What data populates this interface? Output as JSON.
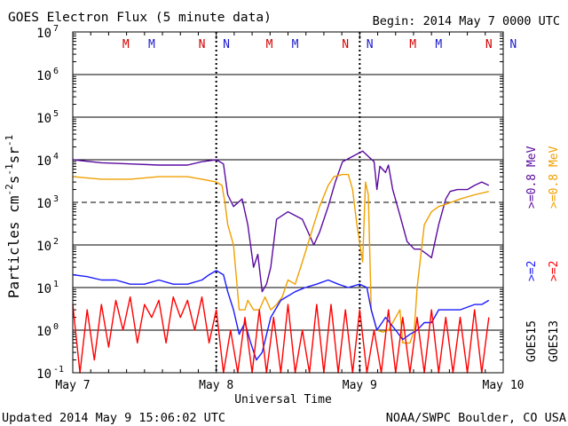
{
  "header": {
    "title": "GOES Electron Flux (5 minute data)",
    "begin": "Begin: 2014 May 7 0000 UTC"
  },
  "footer": {
    "updated": "Updated 2014 May  9 15:06:02 UTC",
    "source": "NOAA/SWPC Boulder, CO USA"
  },
  "axes": {
    "xlabel": "Universal Time",
    "ylabel": "Particles cm-2s-1sr-1",
    "x_ticks": [
      "May 7",
      "May 8",
      "May 9",
      "May 10"
    ],
    "y_ticks": [
      {
        "base": "10",
        "exp": "7"
      },
      {
        "base": "10",
        "exp": "6"
      },
      {
        "base": "10",
        "exp": "5"
      },
      {
        "base": "10",
        "exp": "4"
      },
      {
        "base": "10",
        "exp": "3"
      },
      {
        "base": "10",
        "exp": "2"
      },
      {
        "base": "10",
        "exp": "1"
      },
      {
        "base": "10",
        "exp": "0"
      },
      {
        "base": "10",
        "exp": "-1"
      }
    ]
  },
  "right_legend": {
    "purple": ">=0.8  MeV",
    "orange": ">=0.8  MeV",
    "blue": ">=2",
    "red": ">=2",
    "sat1": "GOES15",
    "sat2": "GOES13"
  },
  "markers": [
    {
      "label": "M",
      "day": 0.37,
      "color": "#d40000"
    },
    {
      "label": "M",
      "day": 0.55,
      "color": "#1a1acc"
    },
    {
      "label": "N",
      "day": 0.9,
      "color": "#d40000"
    },
    {
      "label": "N",
      "day": 1.07,
      "color": "#1a1acc"
    },
    {
      "label": "M",
      "day": 1.37,
      "color": "#d40000"
    },
    {
      "label": "M",
      "day": 1.55,
      "color": "#1a1acc"
    },
    {
      "label": "N",
      "day": 1.9,
      "color": "#d40000"
    },
    {
      "label": "N",
      "day": 2.07,
      "color": "#1a1acc"
    },
    {
      "label": "M",
      "day": 2.37,
      "color": "#d40000"
    },
    {
      "label": "M",
      "day": 2.55,
      "color": "#1a1acc"
    },
    {
      "label": "N",
      "day": 2.9,
      "color": "#d40000"
    },
    {
      "label": "N",
      "day": 3.07,
      "color": "#1a1acc"
    }
  ],
  "colors": {
    "goes15_08": "#5a0aa0",
    "goes13_08": "#f0a000",
    "goes15_2": "#1a1aff",
    "goes13_2": "#ff0000",
    "threshold": "#000000"
  },
  "chart_data": {
    "type": "line",
    "x_unit": "days since 2014 May 7 0000 UTC",
    "xlim": [
      0,
      3
    ],
    "ylim": [
      0.1,
      10000000
    ],
    "yscale": "log",
    "threshold": 1000,
    "series": [
      {
        "name": "GOES15 >=0.8 MeV",
        "color": "#5a0aa0",
        "points": [
          [
            0,
            10000
          ],
          [
            0.2,
            8500
          ],
          [
            0.4,
            8000
          ],
          [
            0.6,
            7500
          ],
          [
            0.8,
            7500
          ],
          [
            0.9,
            9000
          ],
          [
            1.0,
            10000
          ],
          [
            1.05,
            8000
          ],
          [
            1.08,
            1500
          ],
          [
            1.12,
            800
          ],
          [
            1.18,
            1200
          ],
          [
            1.22,
            300
          ],
          [
            1.26,
            30
          ],
          [
            1.29,
            60
          ],
          [
            1.32,
            8
          ],
          [
            1.35,
            12
          ],
          [
            1.38,
            30
          ],
          [
            1.42,
            400
          ],
          [
            1.5,
            600
          ],
          [
            1.6,
            400
          ],
          [
            1.68,
            100
          ],
          [
            1.72,
            200
          ],
          [
            1.78,
            800
          ],
          [
            1.83,
            3000
          ],
          [
            1.88,
            9000
          ],
          [
            1.95,
            12000
          ],
          [
            2.02,
            16000
          ],
          [
            2.06,
            12000
          ],
          [
            2.1,
            9000
          ],
          [
            2.12,
            2000
          ],
          [
            2.14,
            7000
          ],
          [
            2.18,
            5000
          ],
          [
            2.2,
            7500
          ],
          [
            2.23,
            2000
          ],
          [
            2.28,
            500
          ],
          [
            2.33,
            120
          ],
          [
            2.38,
            80
          ],
          [
            2.42,
            80
          ],
          [
            2.47,
            60
          ],
          [
            2.5,
            50
          ],
          [
            2.55,
            300
          ],
          [
            2.6,
            1200
          ],
          [
            2.63,
            1800
          ],
          [
            2.68,
            2000
          ],
          [
            2.75,
            2000
          ],
          [
            2.8,
            2500
          ],
          [
            2.85,
            3000
          ],
          [
            2.9,
            2500
          ]
        ]
      },
      {
        "name": "GOES13 >=0.8 MeV",
        "color": "#f0a000",
        "points": [
          [
            0,
            4000
          ],
          [
            0.2,
            3500
          ],
          [
            0.4,
            3500
          ],
          [
            0.6,
            4000
          ],
          [
            0.8,
            4000
          ],
          [
            0.9,
            3500
          ],
          [
            1.0,
            3000
          ],
          [
            1.04,
            2500
          ],
          [
            1.06,
            1000
          ],
          [
            1.08,
            300
          ],
          [
            1.12,
            100
          ],
          [
            1.16,
            3
          ],
          [
            1.2,
            3
          ],
          [
            1.22,
            5
          ],
          [
            1.26,
            3
          ],
          [
            1.3,
            3
          ],
          [
            1.34,
            6
          ],
          [
            1.38,
            3
          ],
          [
            1.42,
            4
          ],
          [
            1.46,
            6
          ],
          [
            1.5,
            15
          ],
          [
            1.55,
            12
          ],
          [
            1.6,
            40
          ],
          [
            1.68,
            300
          ],
          [
            1.72,
            800
          ],
          [
            1.78,
            2500
          ],
          [
            1.82,
            4000
          ],
          [
            1.88,
            4500
          ],
          [
            1.92,
            4500
          ],
          [
            1.95,
            2000
          ],
          [
            1.98,
            300
          ],
          [
            2.02,
            40
          ],
          [
            2.04,
            3000
          ],
          [
            2.06,
            1500
          ],
          [
            2.08,
            3
          ],
          [
            2.12,
            1
          ],
          [
            2.16,
            0.9
          ],
          [
            2.2,
            1
          ],
          [
            2.25,
            2
          ],
          [
            2.28,
            3
          ],
          [
            2.3,
            0.5
          ],
          [
            2.35,
            0.5
          ],
          [
            2.38,
            1
          ],
          [
            2.4,
            10
          ],
          [
            2.45,
            300
          ],
          [
            2.5,
            600
          ],
          [
            2.55,
            800
          ],
          [
            2.6,
            900
          ],
          [
            2.7,
            1200
          ],
          [
            2.8,
            1500
          ],
          [
            2.9,
            1800
          ]
        ]
      },
      {
        "name": "GOES15 >=2",
        "color": "#1a1aff",
        "points": [
          [
            0,
            20
          ],
          [
            0.1,
            18
          ],
          [
            0.2,
            15
          ],
          [
            0.3,
            15
          ],
          [
            0.4,
            12
          ],
          [
            0.5,
            12
          ],
          [
            0.6,
            15
          ],
          [
            0.7,
            12
          ],
          [
            0.8,
            12
          ],
          [
            0.9,
            15
          ],
          [
            0.95,
            20
          ],
          [
            1.0,
            25
          ],
          [
            1.05,
            20
          ],
          [
            1.08,
            8
          ],
          [
            1.12,
            3
          ],
          [
            1.16,
            0.8
          ],
          [
            1.2,
            1.5
          ],
          [
            1.24,
            0.5
          ],
          [
            1.28,
            0.2
          ],
          [
            1.32,
            0.3
          ],
          [
            1.38,
            2
          ],
          [
            1.45,
            5
          ],
          [
            1.55,
            8
          ],
          [
            1.62,
            10
          ],
          [
            1.7,
            12
          ],
          [
            1.78,
            15
          ],
          [
            1.85,
            12
          ],
          [
            1.92,
            10
          ],
          [
            2.0,
            12
          ],
          [
            2.05,
            10
          ],
          [
            2.08,
            3
          ],
          [
            2.12,
            1
          ],
          [
            2.18,
            2
          ],
          [
            2.25,
            1
          ],
          [
            2.3,
            0.6
          ],
          [
            2.35,
            0.8
          ],
          [
            2.4,
            1
          ],
          [
            2.45,
            1.5
          ],
          [
            2.5,
            1.5
          ],
          [
            2.55,
            3
          ],
          [
            2.6,
            3
          ],
          [
            2.65,
            3
          ],
          [
            2.7,
            3
          ],
          [
            2.8,
            4
          ],
          [
            2.85,
            4
          ],
          [
            2.9,
            5
          ]
        ]
      },
      {
        "name": "GOES13 >=2",
        "color": "#ff0000",
        "points": [
          [
            0,
            4
          ],
          [
            0.05,
            0.1
          ],
          [
            0.1,
            3
          ],
          [
            0.15,
            0.2
          ],
          [
            0.2,
            4
          ],
          [
            0.25,
            0.4
          ],
          [
            0.3,
            5
          ],
          [
            0.35,
            1
          ],
          [
            0.4,
            6
          ],
          [
            0.45,
            0.5
          ],
          [
            0.5,
            4
          ],
          [
            0.55,
            2
          ],
          [
            0.6,
            5
          ],
          [
            0.65,
            0.5
          ],
          [
            0.7,
            6
          ],
          [
            0.75,
            2
          ],
          [
            0.8,
            5
          ],
          [
            0.85,
            1
          ],
          [
            0.9,
            6
          ],
          [
            0.95,
            0.5
          ],
          [
            1.0,
            3
          ],
          [
            1.05,
            0.1
          ],
          [
            1.1,
            1
          ],
          [
            1.15,
            0.1
          ],
          [
            1.2,
            2
          ],
          [
            1.25,
            0.1
          ],
          [
            1.3,
            3
          ],
          [
            1.35,
            0.1
          ],
          [
            1.4,
            2
          ],
          [
            1.45,
            0.1
          ],
          [
            1.5,
            4
          ],
          [
            1.55,
            0.1
          ],
          [
            1.6,
            1
          ],
          [
            1.65,
            0.1
          ],
          [
            1.7,
            4
          ],
          [
            1.75,
            0.1
          ],
          [
            1.8,
            4
          ],
          [
            1.85,
            0.1
          ],
          [
            1.9,
            3
          ],
          [
            1.95,
            0.1
          ],
          [
            2.0,
            3
          ],
          [
            2.05,
            0.1
          ],
          [
            2.1,
            1
          ],
          [
            2.15,
            0.1
          ],
          [
            2.2,
            3
          ],
          [
            2.25,
            0.1
          ],
          [
            2.3,
            2
          ],
          [
            2.35,
            0.1
          ],
          [
            2.4,
            2
          ],
          [
            2.45,
            0.1
          ],
          [
            2.5,
            3
          ],
          [
            2.55,
            0.1
          ],
          [
            2.6,
            2
          ],
          [
            2.65,
            0.1
          ],
          [
            2.7,
            2
          ],
          [
            2.75,
            0.1
          ],
          [
            2.8,
            3
          ],
          [
            2.85,
            0.1
          ],
          [
            2.9,
            2
          ]
        ]
      }
    ]
  }
}
